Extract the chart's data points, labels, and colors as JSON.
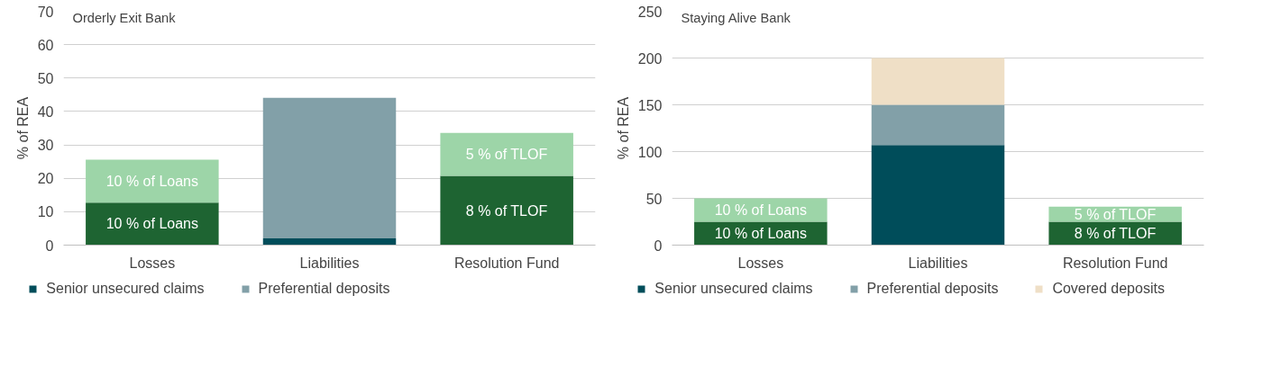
{
  "chart_data": [
    {
      "type": "bar",
      "stacked": true,
      "title": "Orderly Exit Bank",
      "ylabel": "% of REA",
      "categories": [
        "Losses",
        "Liabilities",
        "Resolution Fund"
      ],
      "ylim": [
        0,
        70
      ],
      "yticks": [
        0,
        10,
        20,
        30,
        40,
        50,
        60,
        70
      ],
      "grid": "y",
      "legend": "bottom",
      "series": [
        {
          "color": "#1e6432",
          "values": [
            12.7,
            null,
            20.7
          ]
        },
        {
          "color": "#9dd5a8",
          "values": [
            12.9,
            null,
            12.9
          ]
        },
        {
          "name": "Senior unsecured claims",
          "color": "#004d5a",
          "values": [
            null,
            2.0,
            null
          ]
        },
        {
          "name": "Preferential deposits",
          "color": "#82a0a8",
          "values": [
            null,
            42.1,
            null
          ]
        }
      ],
      "annotations": [
        "10 % of Loans",
        "8 % of TLOF",
        "10 % of Loans",
        "5 % of TLOF"
      ]
    },
    {
      "type": "bar",
      "stacked": true,
      "title": "Staying Alive Bank",
      "ylabel": "% of REA",
      "categories": [
        "Losses",
        "Liabilities",
        "Resolution Fund"
      ],
      "ylim": [
        0,
        250
      ],
      "yticks": [
        0,
        50,
        100,
        150,
        200,
        250
      ],
      "grid": "y",
      "legend": "bottom",
      "series": [
        {
          "color": "#1e6432",
          "values": [
            25,
            null,
            25
          ]
        },
        {
          "color": "#9dd5a8",
          "values": [
            25,
            null,
            16
          ]
        },
        {
          "name": "Senior unsecured claims",
          "color": "#004d5a",
          "values": [
            null,
            107,
            null
          ]
        },
        {
          "name": "Preferential deposits",
          "color": "#82a0a8",
          "values": [
            null,
            43,
            null
          ]
        },
        {
          "name": "Covered deposits",
          "color": "#efdfc6",
          "values": [
            null,
            50,
            null
          ]
        }
      ],
      "annotations": [
        "10 % of Loans",
        "8 % of TLOF",
        "10 % of Loans",
        "5 % of TLOF"
      ]
    }
  ]
}
